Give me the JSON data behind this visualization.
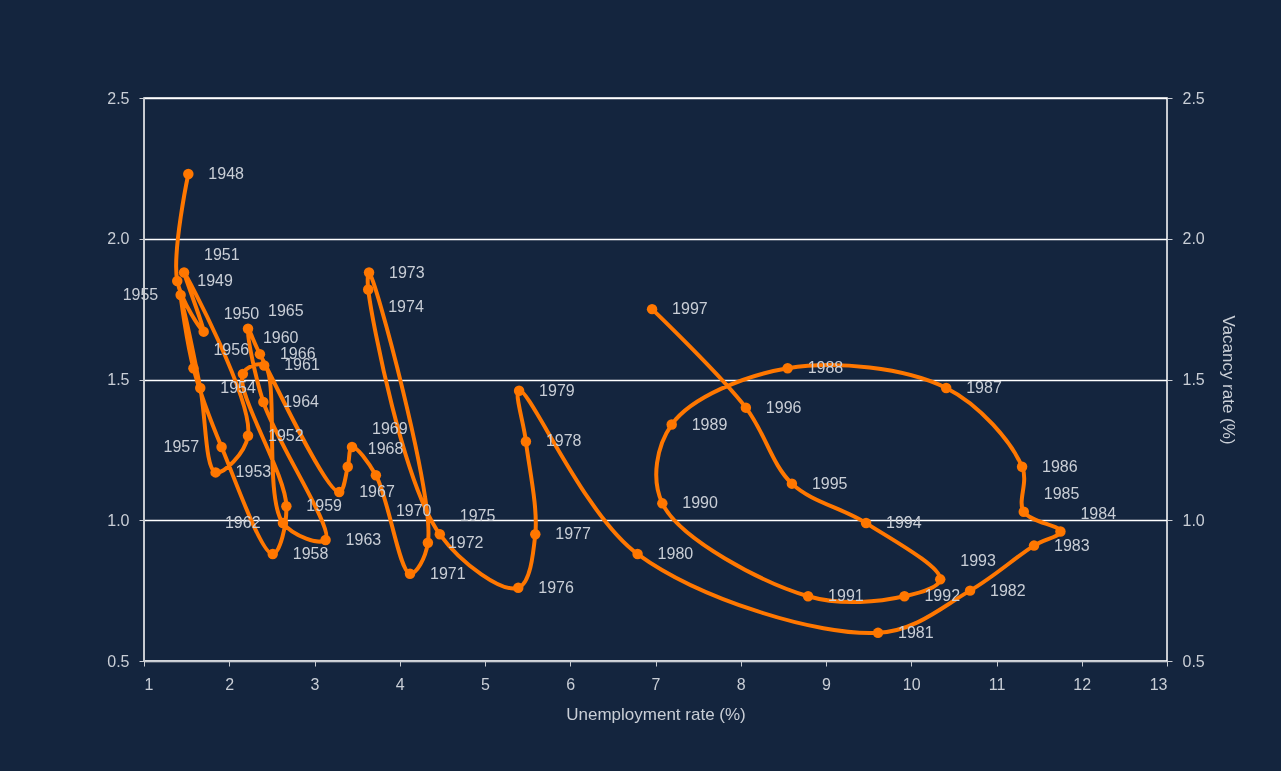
{
  "chart_data": {
    "type": "line",
    "xlabel": "Unemployment rate (%)",
    "y2label": "Vacancy rate (%)",
    "xlim": [
      1,
      13
    ],
    "xticks": [
      1,
      2,
      3,
      4,
      5,
      6,
      7,
      8,
      9,
      10,
      11,
      12,
      13
    ],
    "ylim": [
      0.5,
      2.5
    ],
    "yticks": [
      0.5,
      {
        "value": 1,
        "label": "1.0"
      },
      1.5,
      {
        "value": 2,
        "label": "2.0"
      },
      2.5
    ],
    "y2lim": [
      0.5,
      2.5
    ],
    "y2ticks": [
      0.5,
      {
        "value": 1,
        "label": "1.0"
      },
      1.5,
      {
        "value": 2,
        "label": "2.0"
      },
      2.5
    ],
    "grid": "y",
    "marker": "circle",
    "line_style": "solid",
    "series": [
      {
        "color": "#ff7700",
        "x": [
          1.52,
          1.39,
          1.7,
          1.47,
          2.22,
          1.84,
          1.66,
          1.43,
          1.58,
          1.91,
          2.51,
          2.67,
          2.16,
          2.41,
          2.63,
          3.13,
          2.4,
          2.22,
          2.36,
          3.29,
          3.39,
          3.44,
          3.72,
          4.12,
          4.33,
          3.64,
          3.63,
          4.47,
          5.39,
          5.59,
          5.48,
          5.4,
          6.79,
          9.61,
          10.69,
          11.44,
          11.75,
          11.32,
          11.3,
          10.41,
          8.55,
          7.19,
          7.08,
          8.79,
          9.92,
          10.34,
          9.47,
          8.6,
          8.06,
          6.96
        ],
        "values": [
          2.23,
          1.85,
          1.67,
          1.88,
          1.3,
          1.17,
          1.47,
          1.8,
          1.54,
          1.26,
          0.88,
          1.05,
          1.52,
          1.55,
          0.99,
          0.93,
          1.42,
          1.68,
          1.59,
          1.1,
          1.19,
          1.26,
          1.16,
          0.81,
          0.92,
          1.88,
          1.82,
          0.95,
          0.76,
          0.95,
          1.28,
          1.46,
          0.88,
          0.6,
          0.75,
          0.91,
          0.96,
          1.03,
          1.19,
          1.47,
          1.54,
          1.34,
          1.06,
          0.73,
          0.73,
          0.79,
          0.99,
          1.13,
          1.4,
          1.75
        ]
      }
    ],
    "annotations": [
      {
        "text": "1948",
        "x": 1.52,
        "y": 2.23
      },
      {
        "text": "1949",
        "x": 1.39,
        "y": 1.85
      },
      {
        "text": "1950",
        "x": 1.7,
        "y": 1.67
      },
      {
        "text": "1951",
        "x": 1.47,
        "y": 1.88
      },
      {
        "text": "1952",
        "x": 2.22,
        "y": 1.3
      },
      {
        "text": "1953",
        "x": 1.84,
        "y": 1.17
      },
      {
        "text": "1954",
        "x": 1.66,
        "y": 1.47
      },
      {
        "text": "1955",
        "x": 1.43,
        "y": 1.8
      },
      {
        "text": "1956",
        "x": 1.58,
        "y": 1.54
      },
      {
        "text": "1957",
        "x": 1.91,
        "y": 1.26
      },
      {
        "text": "1958",
        "x": 2.51,
        "y": 0.88
      },
      {
        "text": "1959",
        "x": 2.67,
        "y": 1.05
      },
      {
        "text": "1960",
        "x": 2.16,
        "y": 1.52
      },
      {
        "text": "1961",
        "x": 2.41,
        "y": 1.55
      },
      {
        "text": "1962",
        "x": 2.63,
        "y": 0.99
      },
      {
        "text": "1963",
        "x": 3.13,
        "y": 0.93
      },
      {
        "text": "1964",
        "x": 2.4,
        "y": 1.42
      },
      {
        "text": "1965",
        "x": 2.22,
        "y": 1.68
      },
      {
        "text": "1966",
        "x": 2.36,
        "y": 1.59
      },
      {
        "text": "1967",
        "x": 3.29,
        "y": 1.1
      },
      {
        "text": "1968",
        "x": 3.39,
        "y": 1.19
      },
      {
        "text": "1969",
        "x": 3.44,
        "y": 1.26
      },
      {
        "text": "1970",
        "x": 3.72,
        "y": 1.16
      },
      {
        "text": "1971",
        "x": 4.12,
        "y": 0.81
      },
      {
        "text": "1972",
        "x": 4.33,
        "y": 0.92
      },
      {
        "text": "1973",
        "x": 3.64,
        "y": 1.88
      },
      {
        "text": "1974",
        "x": 3.63,
        "y": 1.82
      },
      {
        "text": "1975",
        "x": 4.47,
        "y": 0.95
      },
      {
        "text": "1976",
        "x": 5.39,
        "y": 0.76
      },
      {
        "text": "1977",
        "x": 5.59,
        "y": 0.95
      },
      {
        "text": "1978",
        "x": 5.48,
        "y": 1.28
      },
      {
        "text": "1979",
        "x": 5.4,
        "y": 1.46
      },
      {
        "text": "1980",
        "x": 6.79,
        "y": 0.88
      },
      {
        "text": "1981",
        "x": 9.61,
        "y": 0.6
      },
      {
        "text": "1982",
        "x": 10.69,
        "y": 0.75
      },
      {
        "text": "1983",
        "x": 11.44,
        "y": 0.91
      },
      {
        "text": "1984",
        "x": 11.75,
        "y": 0.96
      },
      {
        "text": "1985",
        "x": 11.32,
        "y": 1.03
      },
      {
        "text": "1986",
        "x": 11.3,
        "y": 1.19
      },
      {
        "text": "1987",
        "x": 10.41,
        "y": 1.47
      },
      {
        "text": "1988",
        "x": 8.55,
        "y": 1.54
      },
      {
        "text": "1989",
        "x": 7.19,
        "y": 1.34
      },
      {
        "text": "1990",
        "x": 7.08,
        "y": 1.06
      },
      {
        "text": "1991",
        "x": 8.79,
        "y": 0.73
      },
      {
        "text": "1992",
        "x": 9.92,
        "y": 0.73
      },
      {
        "text": "1993",
        "x": 10.34,
        "y": 0.79
      },
      {
        "text": "1994",
        "x": 9.47,
        "y": 0.99
      },
      {
        "text": "1995",
        "x": 8.6,
        "y": 1.13
      },
      {
        "text": "1996",
        "x": 8.06,
        "y": 1.4
      },
      {
        "text": "1997",
        "x": 6.96,
        "y": 1.75
      }
    ]
  }
}
